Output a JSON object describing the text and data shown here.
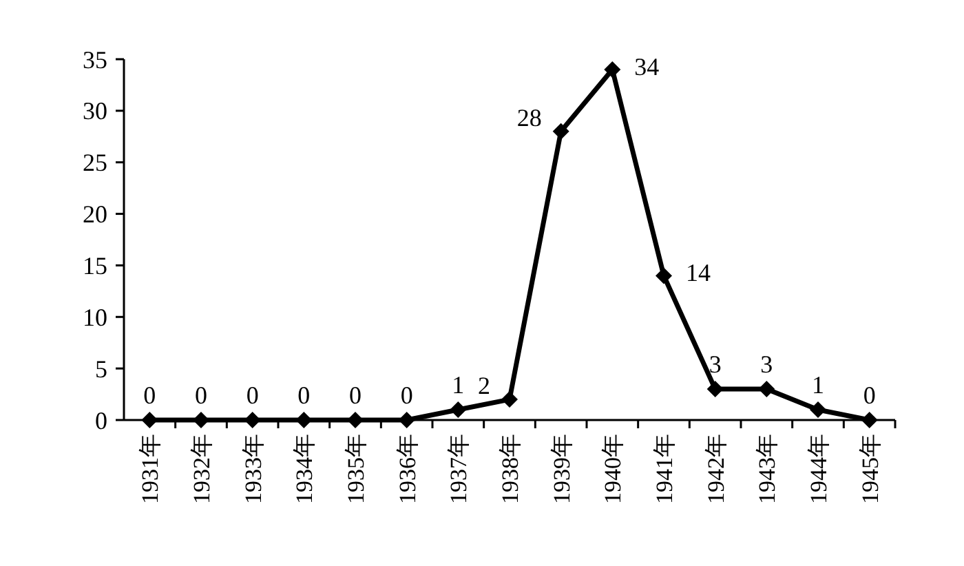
{
  "chart_data": {
    "type": "line",
    "categories": [
      "1931年",
      "1932年",
      "1933年",
      "1934年",
      "1935年",
      "1936年",
      "1937年",
      "1938年",
      "1939年",
      "1940年",
      "1941年",
      "1942年",
      "1943年",
      "1944年",
      "1945年"
    ],
    "series": [
      {
        "color": "#000000",
        "values": [
          0,
          0,
          0,
          0,
          0,
          0,
          1,
          2,
          28,
          34,
          14,
          3,
          3,
          1,
          0
        ]
      }
    ],
    "ylim": [
      0,
      35
    ],
    "yticks": [
      0,
      5,
      10,
      15,
      20,
      25,
      30,
      35
    ],
    "grid": false,
    "marker": "diamond",
    "line_style": "solid",
    "data_labels": true
  }
}
